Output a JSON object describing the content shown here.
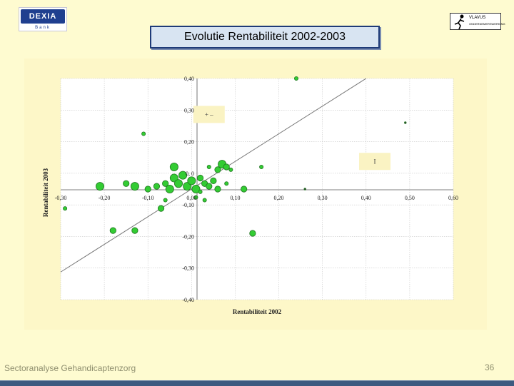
{
  "header": {
    "logo_left_name": "DEXIA",
    "logo_left_sub": "Bank",
    "logo_right_line1": "VLAVUS",
    "logo_right_line2": "ONDERNEMERSWERKING",
    "title": "Evolutie Rentabiliteit 2002-2003"
  },
  "footer": {
    "left_text": "Sectoranalyse Gehandicaptenzorg",
    "page_number": "36"
  },
  "colors": {
    "background": "#fefbd0",
    "plot_bg": "#ffffff",
    "bubble_fill": "#33cc33",
    "bubble_stroke": "#227722",
    "title_border": "#1e3a78",
    "footer_bar": "#3d5a80"
  },
  "chart_data": {
    "type": "scatter",
    "xlabel": "Rentabiliteit 2002",
    "ylabel": "Rentabiliteit 2003",
    "xlim": [
      -0.3,
      0.6
    ],
    "ylim": [
      -0.4,
      0.4
    ],
    "x_ticks": [
      "-0,30",
      "-0,20",
      "-0,10",
      "0,00",
      "0,10",
      "0,20",
      "0,30",
      "0,40",
      "0,50",
      "0,60"
    ],
    "y_ticks": [
      "0,40",
      "0,30",
      "0,20",
      "0, 0",
      "-0,10",
      "-0,20",
      "-0,30",
      "-0,40"
    ],
    "grid": true,
    "reference_line": "y = x",
    "quadrant_labels": [
      {
        "text": "+ –",
        "x": 0.04,
        "y": 0.27
      },
      {
        "text": "I",
        "x": 0.42,
        "y": 0.1
      }
    ],
    "points": [
      {
        "x": 0.24,
        "y": 0.4,
        "size": "small"
      },
      {
        "x": -0.11,
        "y": 0.2,
        "size": "small"
      },
      {
        "x": 0.49,
        "y": 0.24,
        "size": "tiny"
      },
      {
        "x": 0.26,
        "y": 0.0,
        "size": "tiny"
      },
      {
        "x": 0.16,
        "y": 0.08,
        "size": "small"
      },
      {
        "x": -0.29,
        "y": -0.07,
        "size": "small"
      },
      {
        "x": -0.21,
        "y": 0.01,
        "size": "large"
      },
      {
        "x": -0.15,
        "y": 0.02,
        "size": "medium"
      },
      {
        "x": -0.13,
        "y": 0.01,
        "size": "large"
      },
      {
        "x": -0.1,
        "y": 0.0,
        "size": "medium"
      },
      {
        "x": -0.08,
        "y": 0.01,
        "size": "medium"
      },
      {
        "x": -0.06,
        "y": 0.02,
        "size": "medium"
      },
      {
        "x": -0.05,
        "y": 0.0,
        "size": "large"
      },
      {
        "x": -0.04,
        "y": 0.04,
        "size": "large"
      },
      {
        "x": -0.03,
        "y": 0.02,
        "size": "large"
      },
      {
        "x": -0.02,
        "y": 0.05,
        "size": "large"
      },
      {
        "x": -0.01,
        "y": 0.01,
        "size": "large"
      },
      {
        "x": 0.0,
        "y": 0.03,
        "size": "large"
      },
      {
        "x": 0.01,
        "y": 0.0,
        "size": "large"
      },
      {
        "x": 0.02,
        "y": 0.04,
        "size": "medium"
      },
      {
        "x": 0.03,
        "y": 0.02,
        "size": "medium"
      },
      {
        "x": 0.04,
        "y": 0.01,
        "size": "medium"
      },
      {
        "x": 0.05,
        "y": 0.03,
        "size": "medium"
      },
      {
        "x": 0.06,
        "y": 0.0,
        "size": "medium"
      },
      {
        "x": 0.07,
        "y": 0.09,
        "size": "large"
      },
      {
        "x": 0.06,
        "y": 0.07,
        "size": "medium"
      },
      {
        "x": 0.08,
        "y": 0.08,
        "size": "medium"
      },
      {
        "x": 0.09,
        "y": 0.07,
        "size": "small"
      },
      {
        "x": 0.12,
        "y": 0.0,
        "size": "medium"
      },
      {
        "x": 0.08,
        "y": 0.02,
        "size": "small"
      },
      {
        "x": -0.04,
        "y": 0.08,
        "size": "large"
      },
      {
        "x": 0.04,
        "y": 0.08,
        "size": "small"
      },
      {
        "x": 0.02,
        "y": -0.01,
        "size": "small"
      },
      {
        "x": 0.03,
        "y": -0.04,
        "size": "small"
      },
      {
        "x": 0.01,
        "y": -0.03,
        "size": "small"
      },
      {
        "x": -0.07,
        "y": -0.07,
        "size": "medium"
      },
      {
        "x": -0.06,
        "y": -0.04,
        "size": "small"
      },
      {
        "x": -0.18,
        "y": -0.15,
        "size": "medium"
      },
      {
        "x": -0.13,
        "y": -0.15,
        "size": "medium"
      },
      {
        "x": 0.14,
        "y": -0.16,
        "size": "medium"
      }
    ]
  }
}
